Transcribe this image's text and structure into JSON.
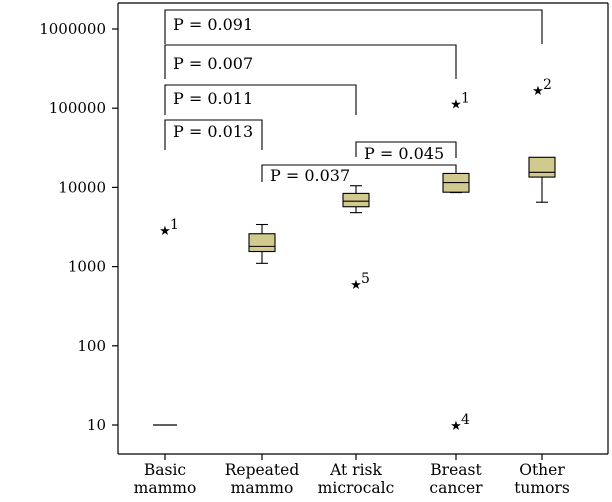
{
  "chart_data": {
    "type": "box",
    "y_scale": "log",
    "ylim": [
      5,
      1000000
    ],
    "ytick_values": [
      10,
      100,
      1000,
      10000,
      100000,
      1000000
    ],
    "ytick_labels": [
      "10",
      "100",
      "1000",
      "10000",
      "100000",
      "1000000"
    ],
    "categories": [
      [
        "Basic",
        "mammo"
      ],
      [
        "Repeated",
        "mammo"
      ],
      [
        "At risk",
        "microcalc"
      ],
      [
        "Breast",
        "cancer"
      ],
      [
        "Other",
        "tumors"
      ]
    ],
    "box_color": "#d2c98e",
    "boxes": [
      {
        "whisker_low": 10,
        "q1": 10,
        "median": 10,
        "q3": 10,
        "whisker_high": 10
      },
      {
        "whisker_low": 1100,
        "q1": 1550,
        "median": 1800,
        "q3": 2600,
        "whisker_high": 3400
      },
      {
        "whisker_low": 4800,
        "q1": 5700,
        "median": 6700,
        "q3": 8400,
        "whisker_high": 10500
      },
      {
        "whisker_low": 8600,
        "q1": 8700,
        "median": 11500,
        "q3": 15000,
        "whisker_high": 15000
      },
      {
        "whisker_low": 6500,
        "q1": 13500,
        "median": 15500,
        "q3": 24000,
        "whisker_high": 24000
      }
    ],
    "outliers": [
      {
        "category": 0,
        "value": 2900,
        "label": "1"
      },
      {
        "category": 2,
        "value": 600,
        "label": "5"
      },
      {
        "category": 3,
        "value": 115000,
        "label": "1"
      },
      {
        "category": 3,
        "value": 10,
        "label": "4"
      },
      {
        "category": 4,
        "value": 170000,
        "label": "2"
      }
    ],
    "comparisons": [
      {
        "from": 0,
        "to": 4,
        "label": "P = 0.091"
      },
      {
        "from": 0,
        "to": 3,
        "label": "P = 0.007"
      },
      {
        "from": 0,
        "to": 2,
        "label": "P = 0.011"
      },
      {
        "from": 0,
        "to": 1,
        "label": "P = 0.013"
      },
      {
        "from": 2,
        "to": 3,
        "label": "P = 0.045"
      },
      {
        "from": 1,
        "to": 3,
        "label": "P = 0.037"
      }
    ]
  }
}
